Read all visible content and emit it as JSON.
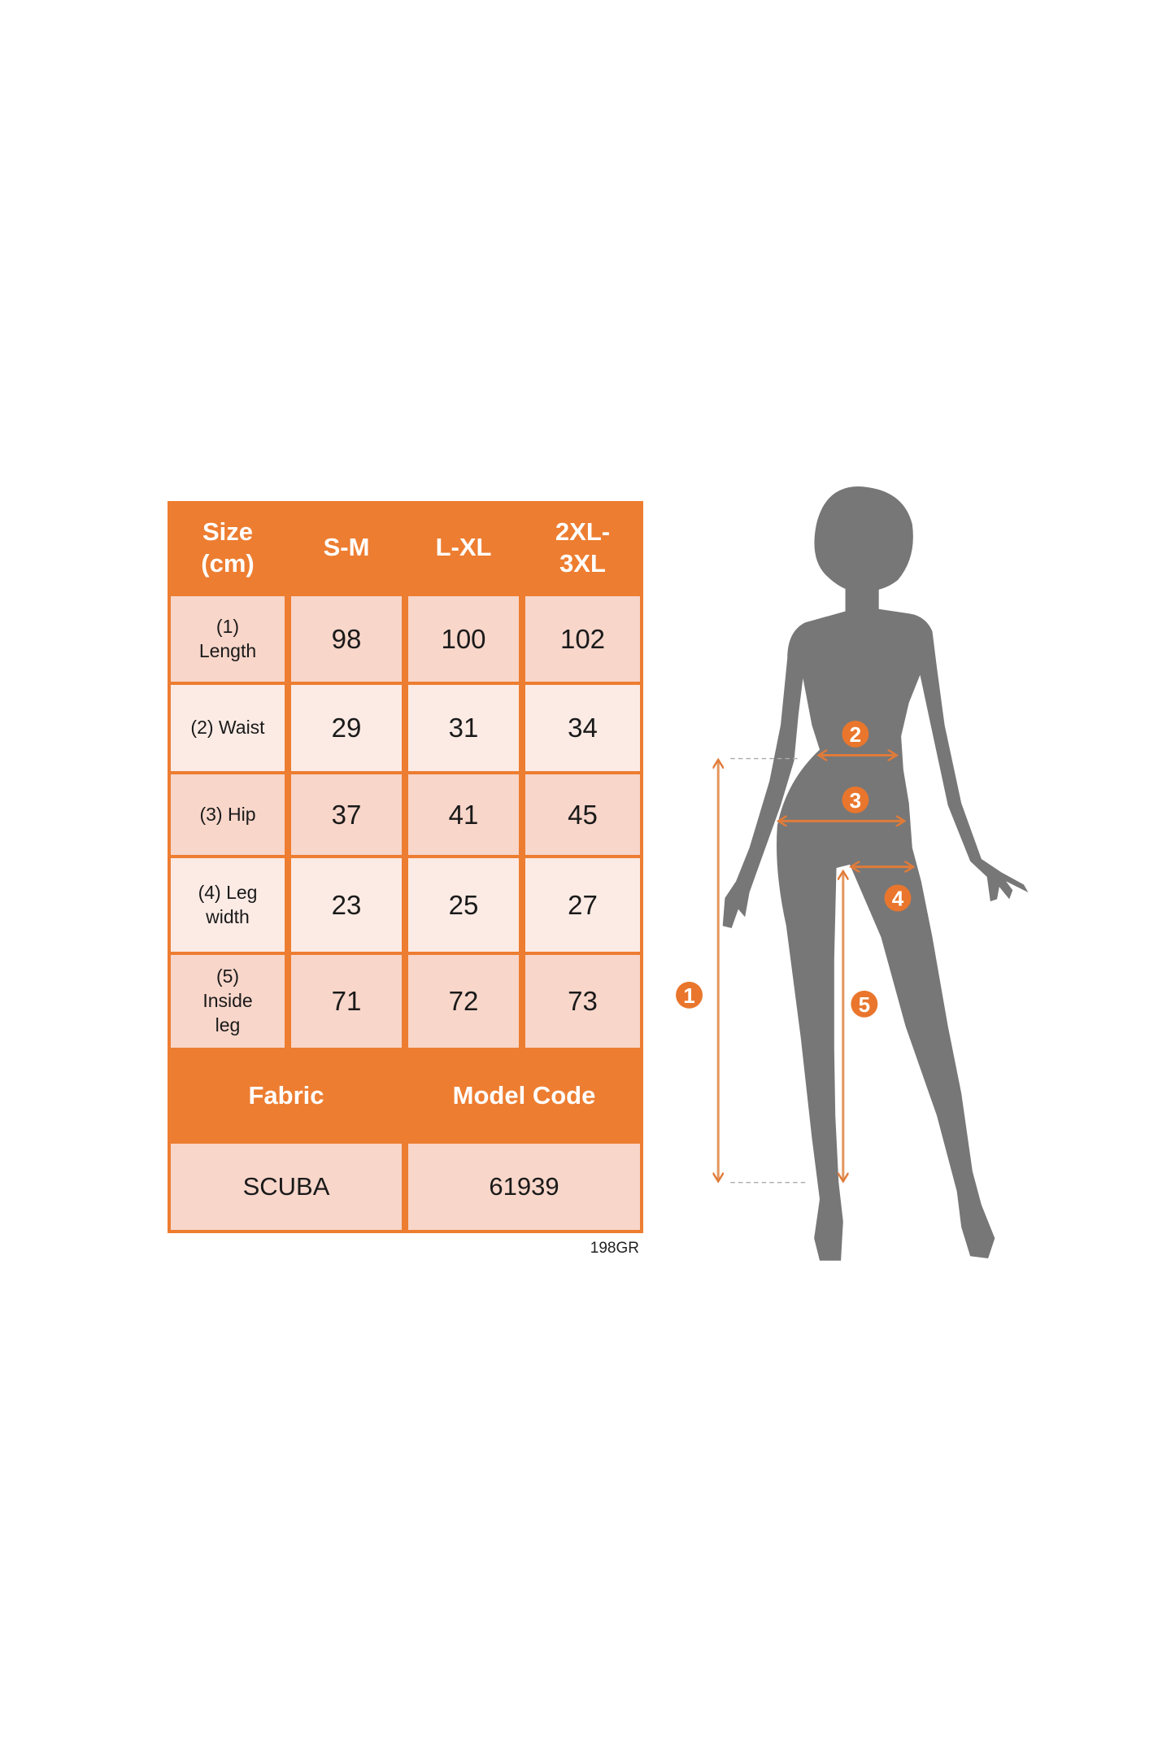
{
  "colors": {
    "accent": "#ED7D31",
    "cell_dark": "#F8D6CA",
    "cell_light": "#FCEBE5",
    "silhouette": "#777777"
  },
  "table": {
    "header": [
      "Size\n(cm)",
      "S-M",
      "L-XL",
      "2XL-\n3XL"
    ],
    "rows": [
      {
        "label": "(1)\nLength",
        "values": [
          "98",
          "100",
          "102"
        ]
      },
      {
        "label": "(2) Waist",
        "values": [
          "29",
          "31",
          "34"
        ]
      },
      {
        "label": "(3) Hip",
        "values": [
          "37",
          "41",
          "45"
        ]
      },
      {
        "label": "(4) Leg\nwidth",
        "values": [
          "23",
          "25",
          "27"
        ]
      },
      {
        "label": "(5)\nInside\nleg",
        "values": [
          "71",
          "72",
          "73"
        ]
      }
    ],
    "footer_header": [
      "Fabric",
      "Model Code"
    ],
    "footer_values": [
      "SCUBA",
      "61939"
    ]
  },
  "code": "198GR",
  "figure": {
    "markers": [
      "1",
      "2",
      "3",
      "4",
      "5"
    ]
  }
}
